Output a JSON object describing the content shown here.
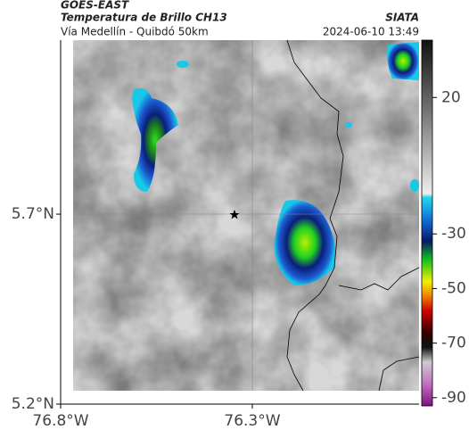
{
  "header": {
    "source": "GOES-EAST",
    "title": "Temperatura de Brillo CH13",
    "org": "SIATA",
    "subtitle": "Vía Medellín - Quibdó 50km",
    "datetime": "2024-06-10 13:49"
  },
  "map": {
    "xlim": [
      -76.8,
      -75.865
    ],
    "ylim": [
      5.2,
      6.158
    ],
    "xticks": [
      {
        "value": -76.8,
        "label": "76.8°W"
      },
      {
        "value": -76.3,
        "label": "76.3°W"
      }
    ],
    "yticks": [
      {
        "value": 5.7,
        "label": "5.7°N"
      },
      {
        "value": 5.2,
        "label": "5.2°N"
      }
    ]
  },
  "colorbar": {
    "lim": [
      -93,
      41
    ],
    "ticks": [
      20,
      -30,
      -50,
      -70,
      -90
    ]
  }
}
